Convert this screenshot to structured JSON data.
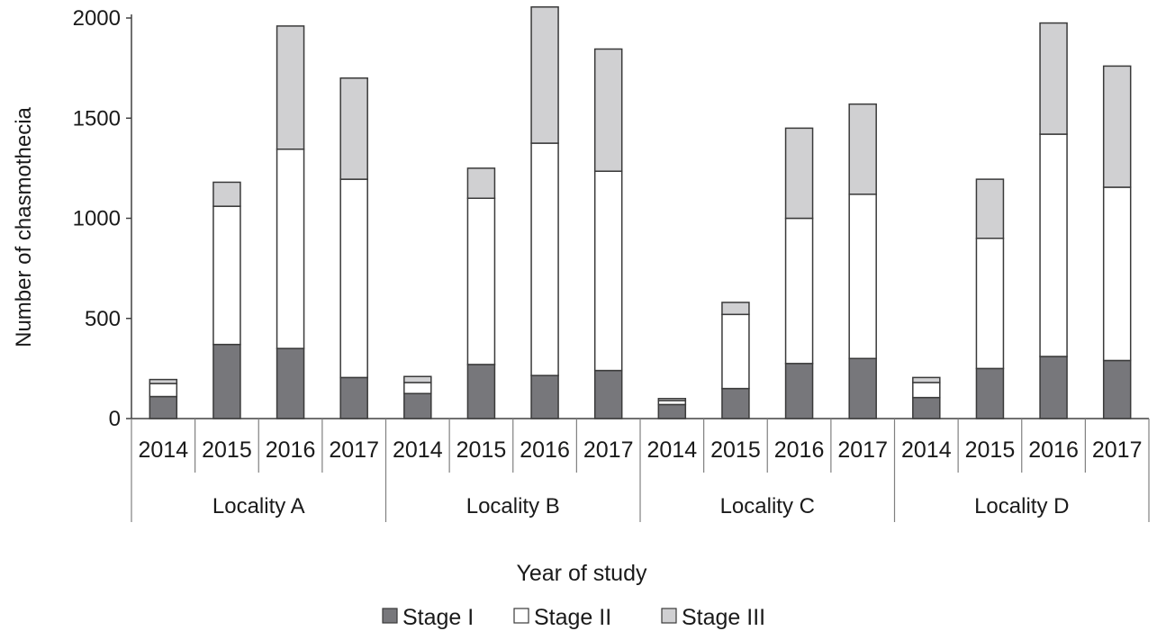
{
  "chart_data": {
    "type": "bar",
    "stacked": true,
    "title": "",
    "xlabel": "Year of study",
    "ylabel": "Number of chasmothecia",
    "ylim": [
      0,
      2000
    ],
    "yticks": [
      0,
      500,
      1000,
      1500,
      2000
    ],
    "grid": false,
    "legend_position": "bottom",
    "groups": [
      {
        "label": "Locality A",
        "categories": [
          "2014",
          "2015",
          "2016",
          "2017"
        ]
      },
      {
        "label": "Locality B",
        "categories": [
          "2014",
          "2015",
          "2016",
          "2017"
        ]
      },
      {
        "label": "Locality C",
        "categories": [
          "2014",
          "2015",
          "2016",
          "2017"
        ]
      },
      {
        "label": "Locality D",
        "categories": [
          "2014",
          "2015",
          "2016",
          "2017"
        ]
      }
    ],
    "series": [
      {
        "name": "Stage I",
        "color": "#77777b",
        "values": [
          110,
          370,
          350,
          205,
          125,
          270,
          215,
          240,
          70,
          150,
          275,
          300,
          105,
          250,
          310,
          290
        ]
      },
      {
        "name": "Stage II",
        "color": "#ffffff",
        "values": [
          65,
          690,
          995,
          990,
          55,
          830,
          1160,
          995,
          20,
          370,
          725,
          820,
          75,
          650,
          1110,
          865
        ]
      },
      {
        "name": "Stage III",
        "color": "#d0d0d2",
        "values": [
          20,
          120,
          615,
          505,
          30,
          150,
          680,
          610,
          10,
          60,
          450,
          450,
          25,
          295,
          555,
          605
        ]
      }
    ]
  }
}
